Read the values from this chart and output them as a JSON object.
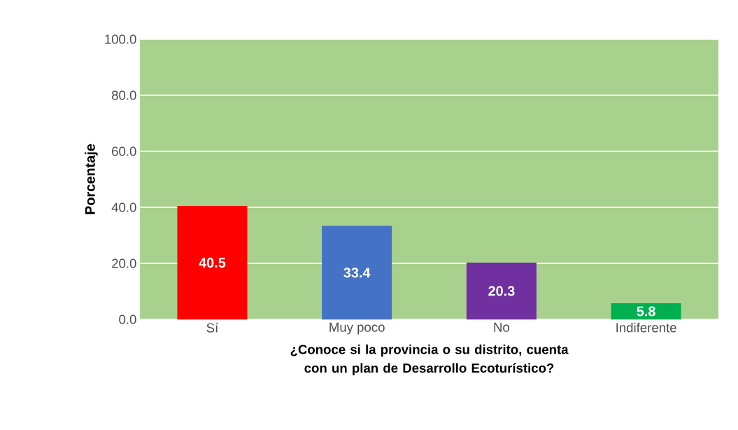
{
  "chart_data": {
    "type": "bar",
    "xlabel": "¿Conoce si la provincia o su distrito, cuenta con un plan de Desarrollo Ecoturístico?",
    "ylabel": "Porcentaje",
    "categories": [
      "Sí",
      "Muy poco",
      "No",
      "Indiferente"
    ],
    "values": [
      40.5,
      33.4,
      20.3,
      5.8
    ],
    "colors": [
      "#ff0000",
      "#4472c4",
      "#7030a0",
      "#00b050"
    ],
    "ylim": [
      0,
      100
    ],
    "yticks": [
      {
        "value": 0,
        "label": "0.0"
      },
      {
        "value": 20,
        "label": "20.0"
      },
      {
        "value": 40,
        "label": "40.0"
      },
      {
        "value": 60,
        "label": "60.0"
      },
      {
        "value": 80,
        "label": "80.0"
      },
      {
        "value": 100,
        "label": "100.0"
      }
    ],
    "grid": "y",
    "data_labels": true
  }
}
